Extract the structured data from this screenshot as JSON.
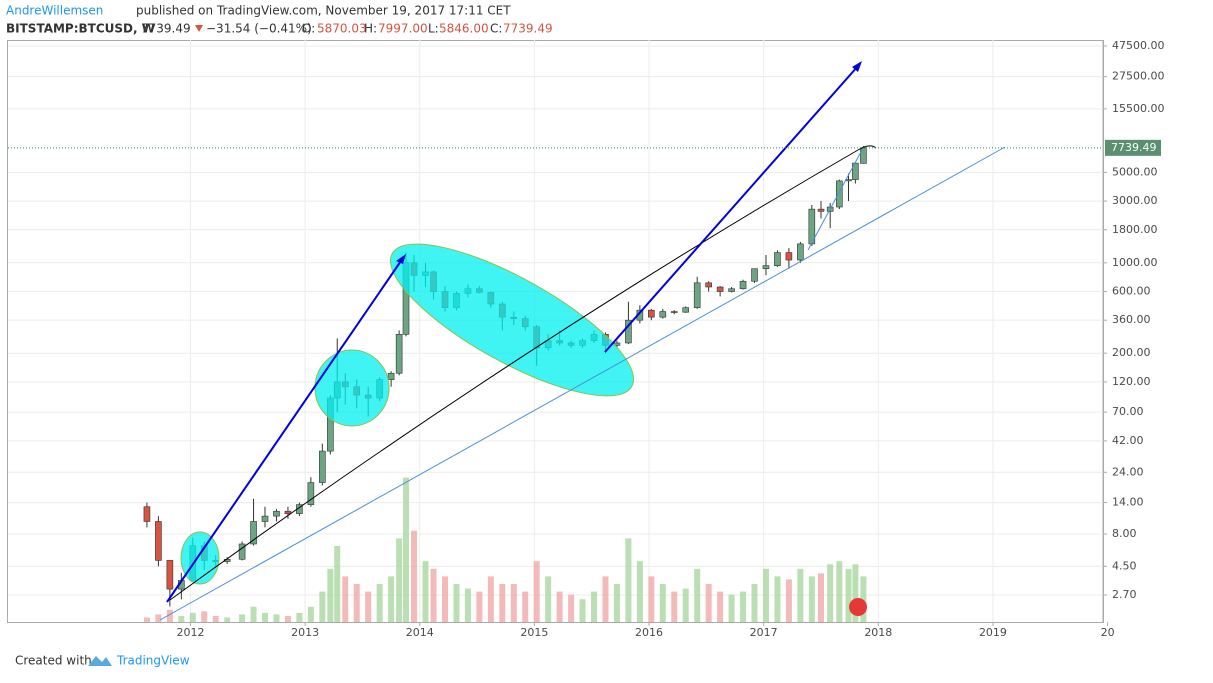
{
  "header": {
    "author": "AndreWillemsen",
    "published": "published on TradingView.com, November 19, 2017 17:11 CET"
  },
  "ticker": {
    "symbol": "BITSTAMP:BTCUSD, W",
    "price": "7739.49",
    "change": "−31.54 (−0.41%)",
    "o_label": "O:",
    "o": "5870.03",
    "h_label": "H:",
    "h": "7997.00",
    "l_label": "L:",
    "l": "5846.00",
    "c_label": "C:",
    "c": "7739.49"
  },
  "footer": {
    "created": "Created with",
    "brand": "TradingView"
  },
  "chart_data": {
    "type": "candlestick",
    "log_y": true,
    "grid": true,
    "up_color": "#6ba583",
    "down_color": "#d75442",
    "volume_up_color": "#a9d7a0",
    "volume_down_color": "#f0a9a9",
    "xlim": [
      2010.408,
      2019.96
    ],
    "xticks": [
      2012,
      2013,
      2014,
      2015,
      2016,
      2017,
      2018,
      2019,
      {
        "value": 2020,
        "label": "20"
      }
    ],
    "ylim": [
      1.67,
      52800
    ],
    "yticks": [
      {
        "value": 47500,
        "label": "47500.00"
      },
      {
        "value": 27500,
        "label": "27500.00"
      },
      {
        "value": 15500,
        "label": "15500.00"
      },
      {
        "value": 5000,
        "label": "5000.00"
      },
      {
        "value": 3000,
        "label": "3000.00"
      },
      {
        "value": 1800,
        "label": "1800.00"
      },
      {
        "value": 1000,
        "label": "1000.00"
      },
      {
        "value": 600,
        "label": "600.00"
      },
      {
        "value": 360,
        "label": "360.00"
      },
      {
        "value": 200,
        "label": "200.00"
      },
      {
        "value": 120,
        "label": "120.00"
      },
      {
        "value": 70,
        "label": "70.00"
      },
      {
        "value": 42,
        "label": "42.00"
      },
      {
        "value": 24,
        "label": "24.00"
      },
      {
        "value": 14,
        "label": "14.00"
      },
      {
        "value": 8,
        "label": "8.00"
      },
      {
        "value": 4.5,
        "label": "4.50"
      },
      {
        "value": 2.7,
        "label": "2.70"
      }
    ],
    "last_price": {
      "value": 7739.49,
      "label": "7739.49"
    },
    "volume_lim": [
      0,
      100
    ],
    "x": [
      2011.62,
      2011.72,
      2011.82,
      2011.92,
      2012.02,
      2012.12,
      2012.22,
      2012.32,
      2012.45,
      2012.55,
      2012.65,
      2012.75,
      2012.85,
      2012.95,
      2013.05,
      2013.15,
      2013.22,
      2013.28,
      2013.35,
      2013.45,
      2013.55,
      2013.65,
      2013.75,
      2013.82,
      2013.88,
      2013.95,
      2014.05,
      2014.12,
      2014.22,
      2014.32,
      2014.42,
      2014.52,
      2014.62,
      2014.72,
      2014.82,
      2014.92,
      2015.02,
      2015.12,
      2015.22,
      2015.32,
      2015.42,
      2015.52,
      2015.62,
      2015.72,
      2015.82,
      2015.92,
      2016.02,
      2016.12,
      2016.22,
      2016.32,
      2016.42,
      2016.52,
      2016.62,
      2016.72,
      2016.82,
      2016.92,
      2017.02,
      2017.12,
      2017.22,
      2017.32,
      2017.42,
      2017.5,
      2017.58,
      2017.66,
      2017.74,
      2017.8,
      2017.87
    ],
    "open": [
      13,
      10,
      5,
      3,
      3.5,
      6.5,
      5,
      4.9,
      5.1,
      6.7,
      10,
      11,
      12,
      11.5,
      13.5,
      20,
      35,
      90,
      120,
      110,
      95,
      90,
      125,
      140,
      280,
      1000,
      800,
      850,
      600,
      450,
      580,
      630,
      590,
      480,
      380,
      370,
      320,
      220,
      250,
      240,
      230,
      250,
      280,
      230,
      240,
      360,
      430,
      380,
      420,
      415,
      450,
      700,
      650,
      600,
      630,
      720,
      900,
      950,
      1200,
      1050,
      1400,
      2600,
      2500,
      2700,
      4300,
      4400,
      5870.03
    ],
    "high": [
      14,
      11,
      5,
      4,
      7.5,
      7,
      5.5,
      5.3,
      7,
      15,
      13,
      12.5,
      13,
      14,
      22,
      40,
      95,
      260,
      140,
      125,
      110,
      130,
      145,
      300,
      1200,
      1150,
      1000,
      870,
      660,
      600,
      680,
      660,
      600,
      500,
      420,
      390,
      330,
      280,
      300,
      250,
      260,
      300,
      290,
      250,
      500,
      470,
      440,
      440,
      430,
      460,
      780,
      720,
      660,
      650,
      740,
      900,
      1150,
      1250,
      1300,
      1450,
      2800,
      3000,
      2900,
      4400,
      4900,
      6000,
      7997
    ],
    "low": [
      9,
      4.5,
      2.2,
      2.5,
      3.5,
      4.2,
      4.5,
      4.7,
      5,
      6.5,
      9,
      10,
      10.5,
      11,
      13,
      19,
      33,
      70,
      80,
      75,
      65,
      85,
      110,
      135,
      270,
      600,
      650,
      520,
      420,
      430,
      540,
      580,
      450,
      300,
      330,
      300,
      160,
      210,
      230,
      220,
      220,
      240,
      200,
      220,
      235,
      340,
      360,
      370,
      400,
      410,
      440,
      600,
      550,
      590,
      620,
      700,
      800,
      930,
      900,
      1000,
      1350,
      2200,
      1850,
      2600,
      3000,
      4100,
      5846
    ],
    "close": [
      10,
      5,
      3,
      3.5,
      6.5,
      5,
      4.9,
      5.1,
      6.7,
      10,
      11,
      12,
      11.5,
      13.5,
      20,
      35,
      90,
      120,
      110,
      95,
      90,
      125,
      140,
      280,
      1000,
      800,
      850,
      600,
      450,
      580,
      630,
      590,
      480,
      380,
      370,
      320,
      220,
      250,
      240,
      230,
      250,
      280,
      230,
      240,
      360,
      430,
      380,
      420,
      415,
      450,
      700,
      650,
      600,
      630,
      720,
      900,
      950,
      1200,
      1050,
      1400,
      2600,
      2500,
      2700,
      4300,
      4400,
      5900,
      7739.49
    ],
    "volume": [
      3,
      5,
      8,
      4,
      6,
      7,
      4,
      3,
      5,
      10,
      6,
      5,
      4,
      6,
      10,
      20,
      35,
      50,
      30,
      25,
      20,
      25,
      30,
      55,
      95,
      60,
      40,
      35,
      30,
      25,
      22,
      20,
      30,
      25,
      25,
      20,
      40,
      30,
      20,
      18,
      15,
      20,
      30,
      25,
      55,
      40,
      30,
      25,
      20,
      22,
      35,
      25,
      20,
      18,
      20,
      25,
      35,
      30,
      28,
      35,
      30,
      32,
      38,
      40,
      35,
      38,
      30
    ]
  }
}
